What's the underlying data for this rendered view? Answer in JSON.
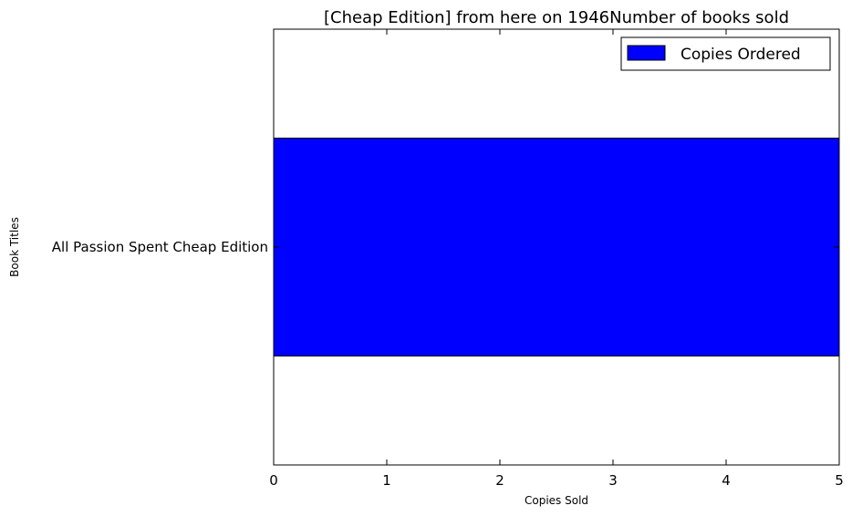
{
  "chart_data": {
    "type": "bar",
    "orientation": "horizontal",
    "title": "[Cheap Edition] from here on 1946Number of books sold",
    "xlabel": "Copies Sold",
    "ylabel": "Book Titles",
    "categories": [
      "All Passion Spent Cheap Edition"
    ],
    "series": [
      {
        "name": "Copies Ordered",
        "values": [
          5
        ],
        "color": "#0000ff"
      }
    ],
    "xlim": [
      0,
      5
    ],
    "xticks": [
      0,
      1,
      2,
      3,
      4,
      5
    ],
    "grid": false,
    "legend_position": "top-right"
  }
}
